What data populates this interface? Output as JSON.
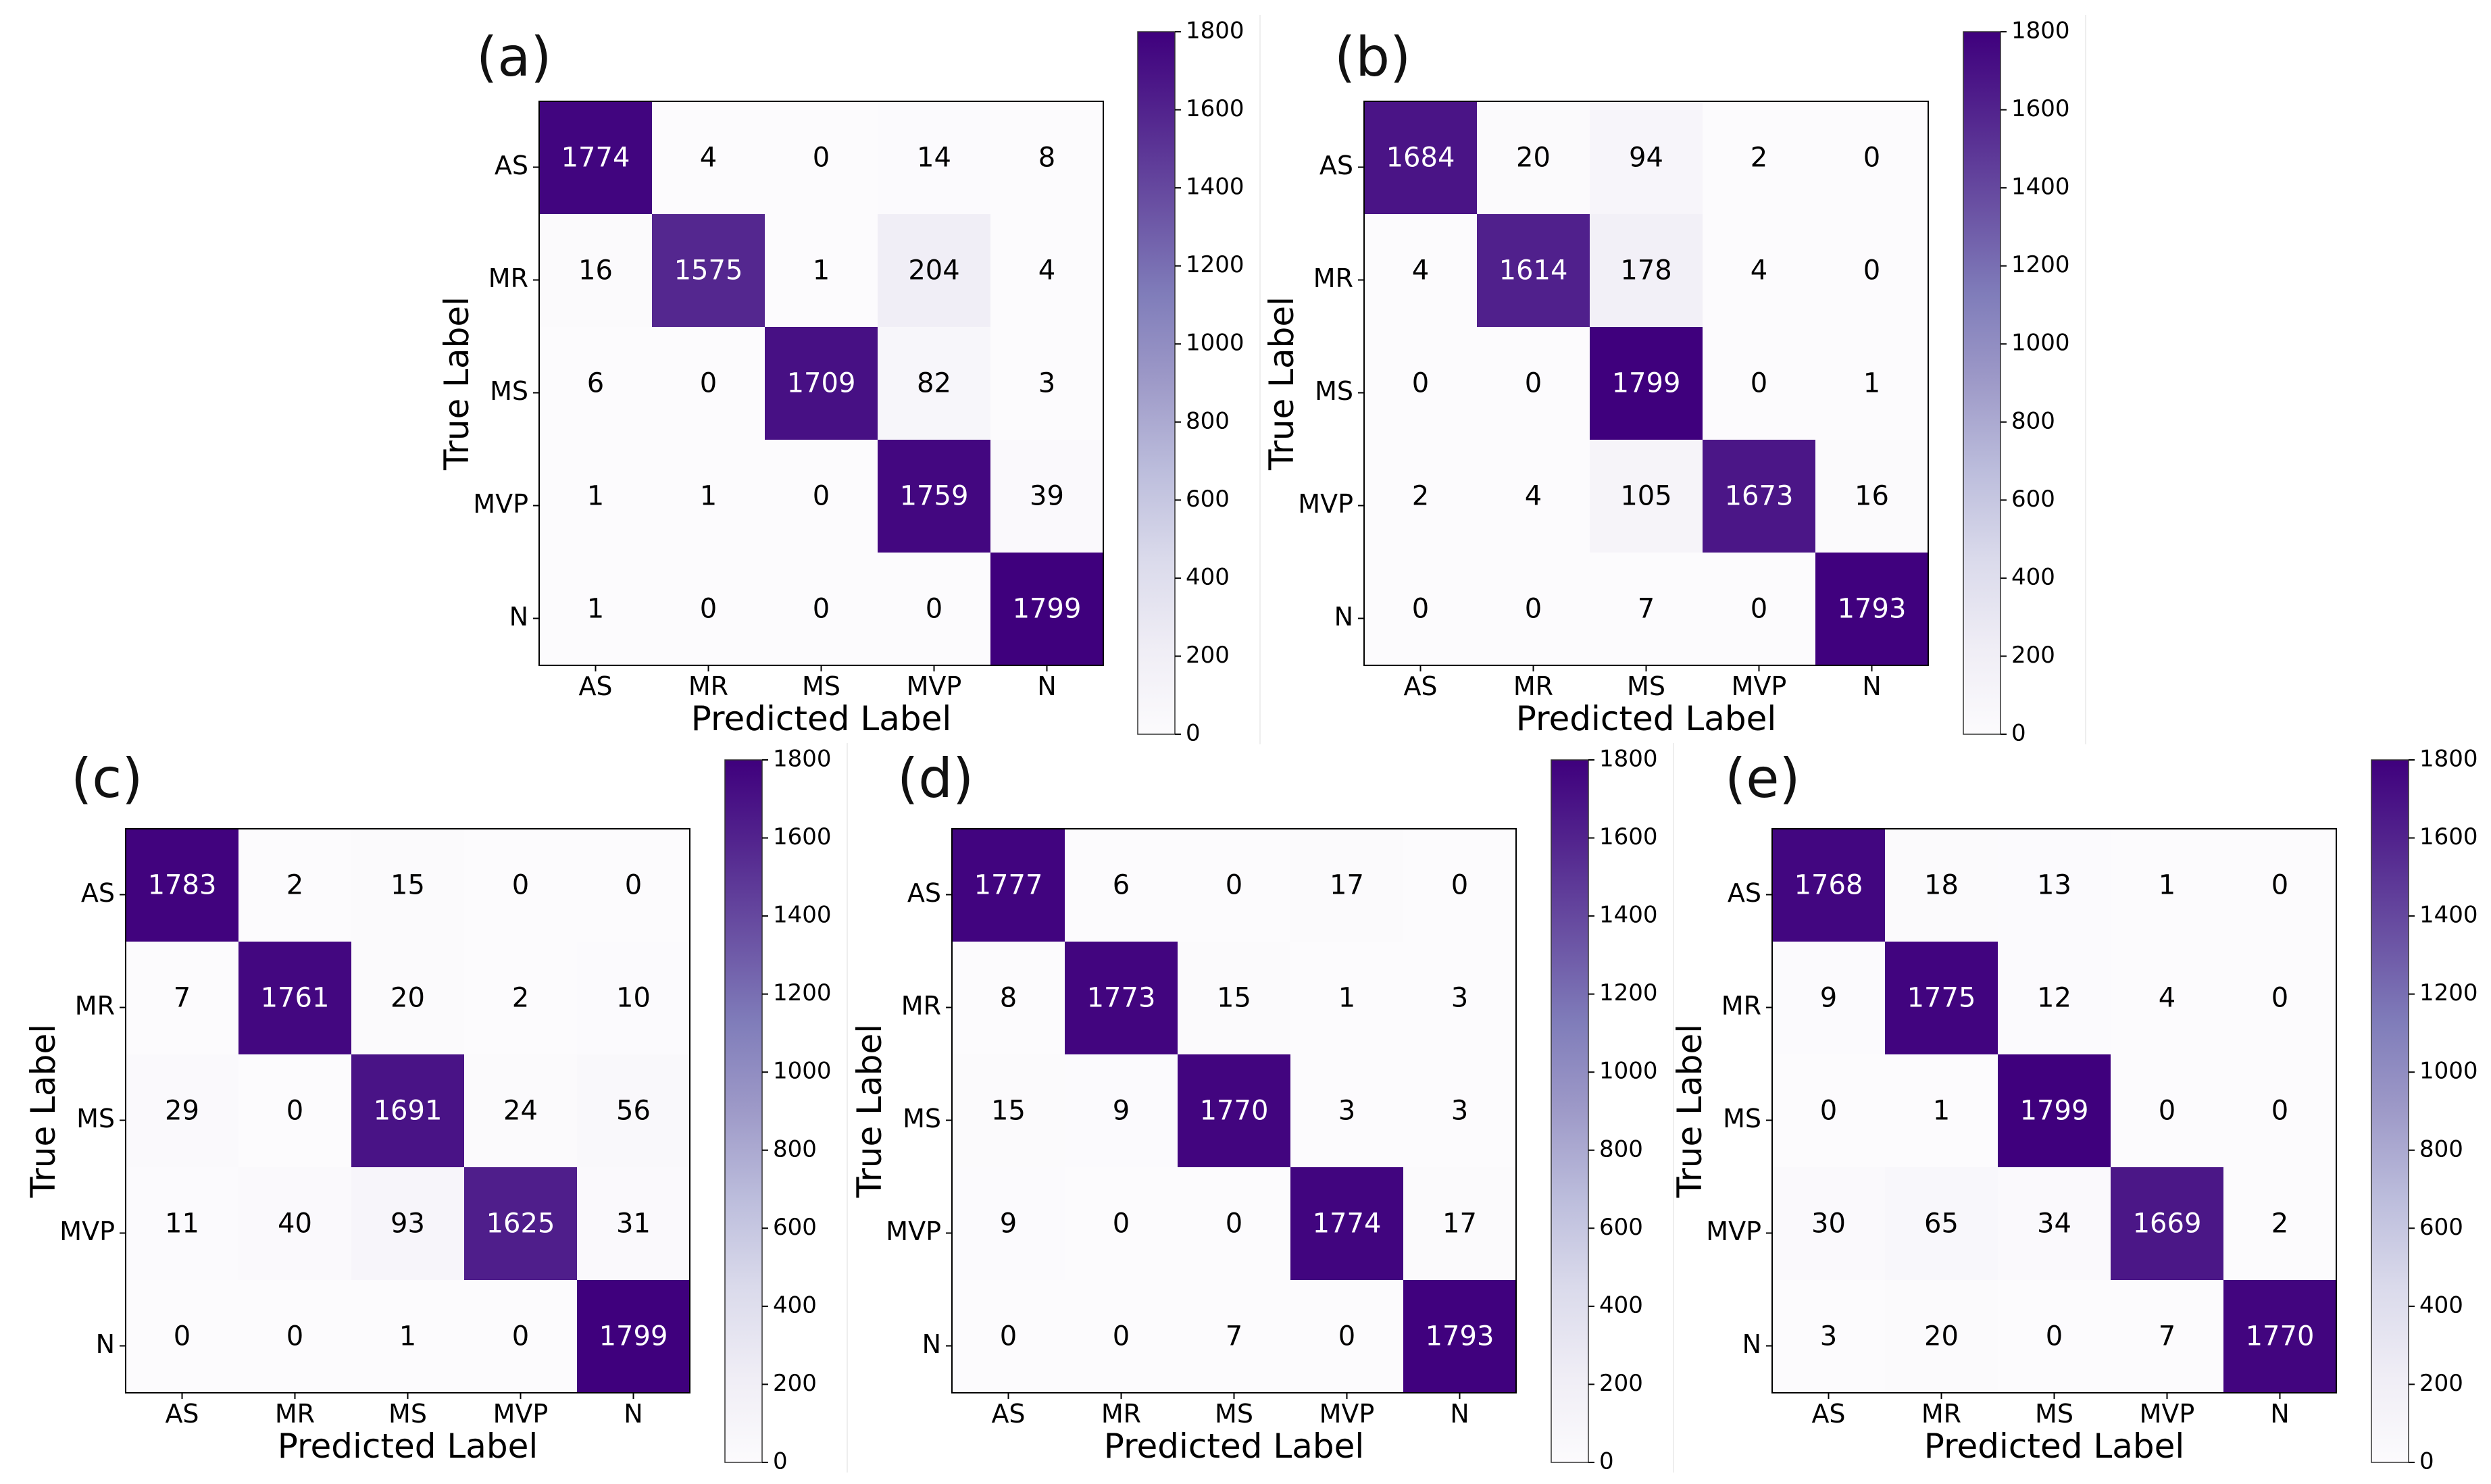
{
  "colors": {
    "low": "#fcfbfd",
    "high": "#3f007d",
    "text_dark": "#000000",
    "text_light": "#ffffff",
    "frame": "#000000"
  },
  "chart_data": [
    {
      "type": "heatmap",
      "panel_label": "(a)",
      "xlabel": "Predicted Label",
      "ylabel": "True Label",
      "x_tick_labels": [
        "AS",
        "MR",
        "MS",
        "MVP",
        "N"
      ],
      "y_tick_labels": [
        "AS",
        "MR",
        "MS",
        "MVP",
        "N"
      ],
      "matrix": [
        [
          1774,
          4,
          0,
          14,
          8
        ],
        [
          16,
          1575,
          1,
          204,
          4
        ],
        [
          6,
          0,
          1709,
          82,
          3
        ],
        [
          1,
          1,
          0,
          1759,
          39
        ],
        [
          1,
          0,
          0,
          0,
          1799
        ]
      ],
      "colorbar": {
        "range": [
          0,
          1800
        ],
        "ticks": [
          0,
          200,
          400,
          600,
          800,
          1000,
          1200,
          1400,
          1600,
          1800
        ]
      }
    },
    {
      "type": "heatmap",
      "panel_label": "(b)",
      "xlabel": "Predicted Label",
      "ylabel": "True Label",
      "x_tick_labels": [
        "AS",
        "MR",
        "MS",
        "MVP",
        "N"
      ],
      "y_tick_labels": [
        "AS",
        "MR",
        "MS",
        "MVP",
        "N"
      ],
      "matrix": [
        [
          1684,
          20,
          94,
          2,
          0
        ],
        [
          4,
          1614,
          178,
          4,
          0
        ],
        [
          0,
          0,
          1799,
          0,
          1
        ],
        [
          2,
          4,
          105,
          1673,
          16
        ],
        [
          0,
          0,
          7,
          0,
          1793
        ]
      ],
      "colorbar": {
        "range": [
          0,
          1800
        ],
        "ticks": [
          0,
          200,
          400,
          600,
          800,
          1000,
          1200,
          1400,
          1600,
          1800
        ]
      }
    },
    {
      "type": "heatmap",
      "panel_label": "(c)",
      "xlabel": "Predicted Label",
      "ylabel": "True Label",
      "x_tick_labels": [
        "AS",
        "MR",
        "MS",
        "MVP",
        "N"
      ],
      "y_tick_labels": [
        "AS",
        "MR",
        "MS",
        "MVP",
        "N"
      ],
      "matrix": [
        [
          1783,
          2,
          15,
          0,
          0
        ],
        [
          7,
          1761,
          20,
          2,
          10
        ],
        [
          29,
          0,
          1691,
          24,
          56
        ],
        [
          11,
          40,
          93,
          1625,
          31
        ],
        [
          0,
          0,
          1,
          0,
          1799
        ]
      ],
      "colorbar": {
        "range": [
          0,
          1800
        ],
        "ticks": [
          0,
          200,
          400,
          600,
          800,
          1000,
          1200,
          1400,
          1600,
          1800
        ]
      }
    },
    {
      "type": "heatmap",
      "panel_label": "(d)",
      "xlabel": "Predicted Label",
      "ylabel": "True Label",
      "x_tick_labels": [
        "AS",
        "MR",
        "MS",
        "MVP",
        "N"
      ],
      "y_tick_labels": [
        "AS",
        "MR",
        "MS",
        "MVP",
        "N"
      ],
      "matrix": [
        [
          1777,
          6,
          0,
          17,
          0
        ],
        [
          8,
          1773,
          15,
          1,
          3
        ],
        [
          15,
          9,
          1770,
          3,
          3
        ],
        [
          9,
          0,
          0,
          1774,
          17
        ],
        [
          0,
          0,
          7,
          0,
          1793
        ]
      ],
      "colorbar": {
        "range": [
          0,
          1800
        ],
        "ticks": [
          0,
          200,
          400,
          600,
          800,
          1000,
          1200,
          1400,
          1600,
          1800
        ]
      }
    },
    {
      "type": "heatmap",
      "panel_label": "(e)",
      "xlabel": "Predicted Label",
      "ylabel": "True Label",
      "x_tick_labels": [
        "AS",
        "MR",
        "MS",
        "MVP",
        "N"
      ],
      "y_tick_labels": [
        "AS",
        "MR",
        "MS",
        "MVP",
        "N"
      ],
      "matrix": [
        [
          1768,
          18,
          13,
          1,
          0
        ],
        [
          9,
          1775,
          12,
          4,
          0
        ],
        [
          0,
          1,
          1799,
          0,
          0
        ],
        [
          30,
          65,
          34,
          1669,
          2
        ],
        [
          3,
          20,
          0,
          7,
          1770
        ]
      ],
      "colorbar": {
        "range": [
          0,
          1800
        ],
        "ticks": [
          0,
          200,
          400,
          600,
          800,
          1000,
          1200,
          1400,
          1600,
          1800
        ]
      }
    }
  ]
}
